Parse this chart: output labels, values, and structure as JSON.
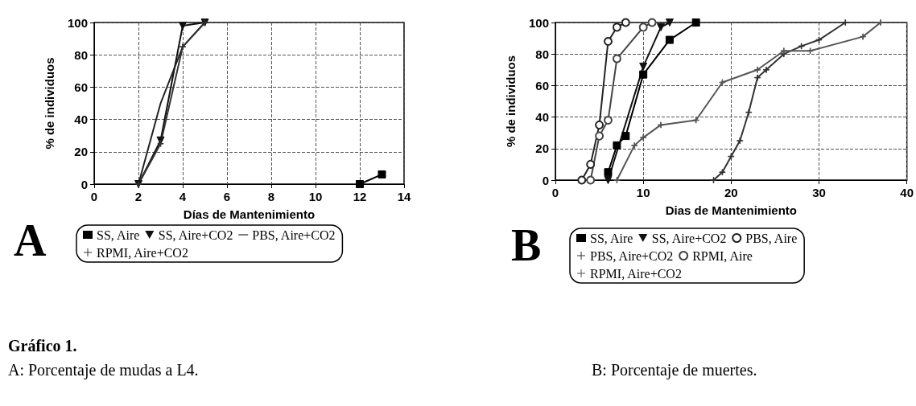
{
  "chart_data": [
    {
      "type": "line",
      "title": "A",
      "xlabel": "Días de Mantenimiento",
      "ylabel": "% de individuos",
      "xlim": [
        0,
        14
      ],
      "xticks": [
        0,
        2,
        4,
        6,
        8,
        10,
        12,
        14
      ],
      "ylim": [
        0,
        100
      ],
      "yticks": [
        0,
        20,
        40,
        60,
        80,
        100
      ],
      "grid": true,
      "legend": "bottom",
      "annotations": [
        "Gráfico 1.",
        "A: Porcentaje de mudas a L4."
      ],
      "series": [
        {
          "name": "SS, Aire",
          "color": "#000000",
          "marker": "square",
          "x": [
            12,
            13
          ],
          "values": [
            0,
            6
          ]
        },
        {
          "name": "SS, Aire+CO2",
          "color": "#111111",
          "marker": "triangle",
          "x": [
            2,
            3,
            4,
            5
          ],
          "values": [
            0,
            27,
            98,
            100
          ]
        },
        {
          "name": "PBS, Aire+CO2",
          "color": "#222222",
          "marker": "none",
          "x": [
            2,
            3,
            4,
            5
          ],
          "values": [
            0,
            50,
            85,
            100
          ]
        },
        {
          "name": "RPMI, Aire+CO2",
          "color": "#333333",
          "marker": "cross",
          "x": [
            2,
            3,
            4,
            5
          ],
          "values": [
            0,
            25,
            85,
            100
          ]
        }
      ]
    },
    {
      "type": "line",
      "title": "B",
      "xlabel": "Dias de Mantenimiento",
      "ylabel": "% de individuos",
      "xlim": [
        0,
        40
      ],
      "xticks": [
        0,
        10,
        20,
        30,
        40
      ],
      "ylim": [
        0,
        100
      ],
      "yticks": [
        0,
        20,
        40,
        60,
        80,
        100
      ],
      "grid": true,
      "legend": "bottom",
      "annotations": [
        "B: Porcentaje de muertes."
      ],
      "series": [
        {
          "name": "SS, Aire",
          "color": "#000000",
          "marker": "square",
          "x": [
            6,
            7,
            8,
            10,
            13,
            16
          ],
          "values": [
            5,
            22,
            28,
            67,
            89,
            100
          ]
        },
        {
          "name": "SS, Aire+CO2",
          "color": "#111111",
          "marker": "triangle",
          "x": [
            6,
            10,
            12,
            13
          ],
          "values": [
            0,
            72,
            97,
            100
          ]
        },
        {
          "name": "PBS, Aire",
          "color": "#222222",
          "marker": "circle",
          "x": [
            3,
            4,
            5,
            6,
            7,
            8
          ],
          "values": [
            0,
            10,
            35,
            88,
            97,
            100
          ]
        },
        {
          "name": "PBS, Aire+CO2",
          "color": "#333333",
          "marker": "cross",
          "x": [
            18,
            19,
            20,
            21,
            22,
            23,
            24,
            26,
            28,
            30,
            33
          ],
          "values": [
            0,
            5,
            15,
            25,
            43,
            65,
            70,
            80,
            85,
            89,
            100
          ]
        },
        {
          "name": "RPMI, Aire",
          "color": "#444444",
          "marker": "circle",
          "x": [
            4,
            5,
            6,
            7,
            10,
            11
          ],
          "values": [
            0,
            28,
            38,
            77,
            97,
            100
          ]
        },
        {
          "name": "RPMI, Aire+CO2",
          "color": "#555555",
          "marker": "cross",
          "x": [
            7,
            9,
            10,
            12,
            16,
            19,
            23,
            26,
            29,
            35,
            37
          ],
          "values": [
            0,
            22,
            27,
            35,
            38,
            62,
            70,
            82,
            82,
            91,
            100
          ]
        }
      ]
    }
  ]
}
